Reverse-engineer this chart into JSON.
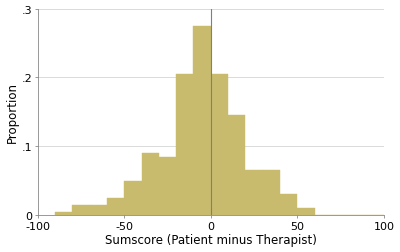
{
  "bar_left_edges": [
    -90,
    -80,
    -70,
    -60,
    -50,
    -40,
    -30,
    -20,
    -10,
    0,
    10,
    20,
    30,
    40,
    50,
    60,
    70,
    80,
    90
  ],
  "bar_heights": [
    0.005,
    0.015,
    0.015,
    0.025,
    0.05,
    0.09,
    0.085,
    0.205,
    0.275,
    0.205,
    0.145,
    0.065,
    0.065,
    0.03,
    0.01,
    0.0,
    0.0,
    0.0,
    0.0
  ],
  "bin_width": 10,
  "bar_color": "#c8bb6e",
  "bar_edgecolor": "#c8bb6e",
  "vline_x": 0,
  "xlim": [
    -100,
    100
  ],
  "ylim": [
    0,
    0.3
  ],
  "xticks": [
    -100,
    -50,
    0,
    50,
    100
  ],
  "yticks": [
    0,
    0.1,
    0.2,
    0.3
  ],
  "ytick_labels": [
    "0",
    ".1",
    ".2",
    ".3"
  ],
  "xlabel": "Sumscore (Patient minus Therapist)",
  "ylabel": "Proportion",
  "background_color": "#ffffff",
  "grid_color": "#d5d5d5",
  "vline_color": "#7f7f7f",
  "xlabel_fontsize": 8.5,
  "ylabel_fontsize": 8.5,
  "tick_fontsize": 8
}
